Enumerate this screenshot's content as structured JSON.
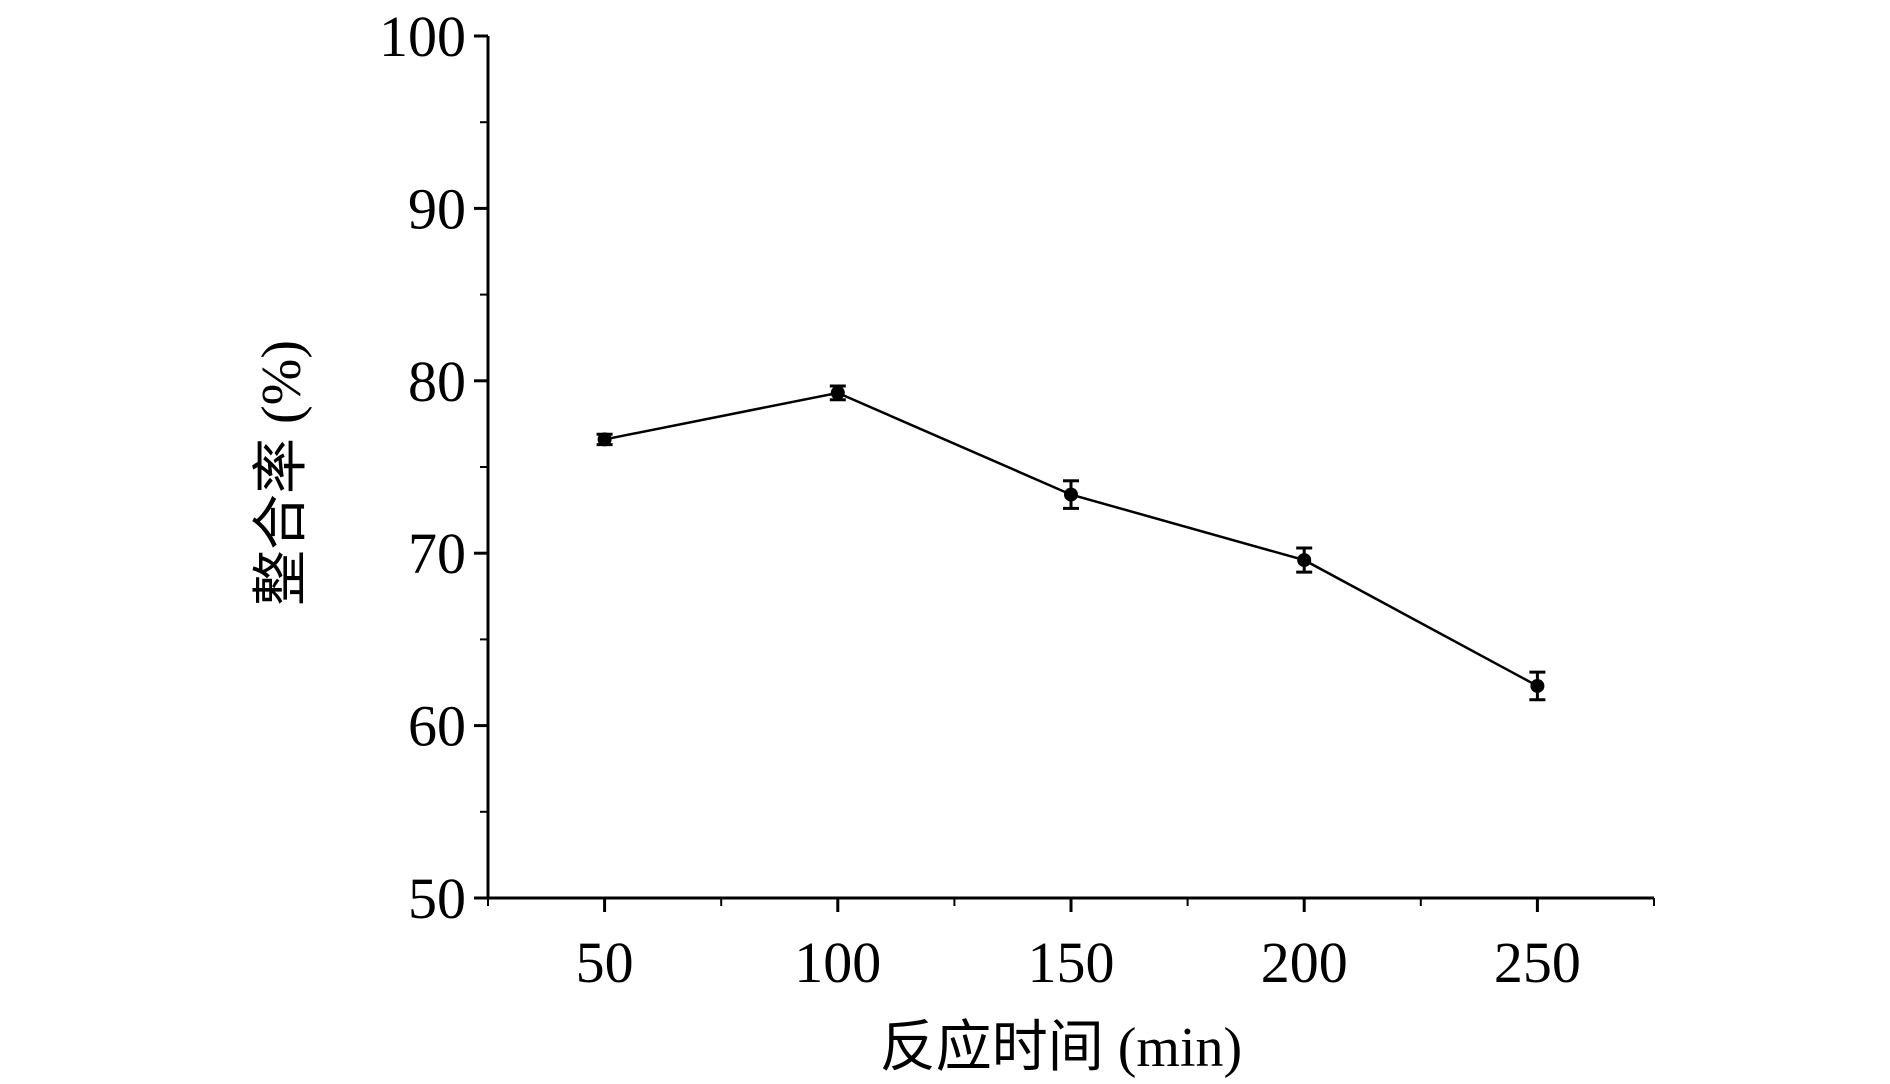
{
  "chart_data": {
    "type": "line",
    "title": "",
    "xlabel": "反应时间 (min)",
    "ylabel": "整合率 (%)",
    "xlim": [
      25,
      275
    ],
    "ylim": [
      50,
      100
    ],
    "xticks": [
      50,
      100,
      150,
      200,
      250
    ],
    "yticks": [
      50,
      60,
      70,
      80,
      90,
      100
    ],
    "grid": false,
    "series": [
      {
        "x": [
          50,
          100,
          150,
          200,
          250
        ],
        "y": [
          76.6,
          79.3,
          73.4,
          69.6,
          62.3
        ],
        "error": [
          0.3,
          0.4,
          0.8,
          0.7,
          0.8
        ],
        "color": "#000000",
        "marker": "circle"
      }
    ]
  }
}
